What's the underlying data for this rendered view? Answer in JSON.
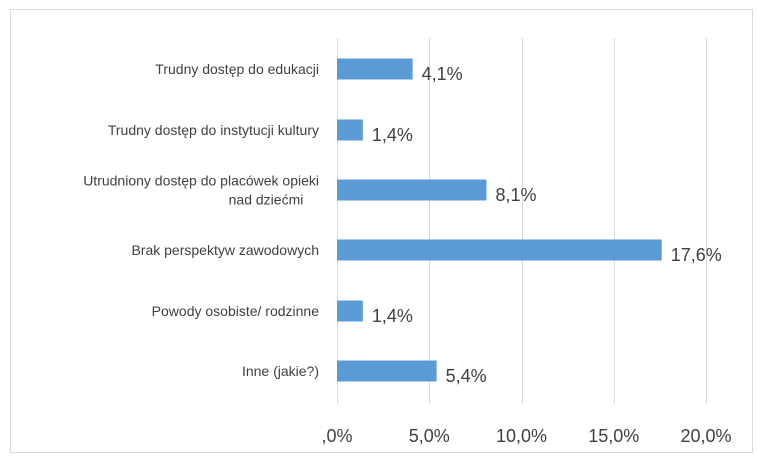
{
  "chart_data": {
    "type": "bar",
    "orientation": "horizontal",
    "categories": [
      [
        "Trudny dostęp do edukacji"
      ],
      [
        "Trudny dostęp do instytucji kultury"
      ],
      [
        "Utrudniony dostęp do placówek opieki",
        "nad dziećmi"
      ],
      [
        "Brak perspektyw zawodowych"
      ],
      [
        "Powody osobiste/ rodzinne"
      ],
      [
        "Inne (jakie?)"
      ]
    ],
    "values": [
      4.1,
      1.4,
      8.1,
      17.6,
      1.4,
      5.4
    ],
    "value_labels": [
      "4,1%",
      "1,4%",
      "8,1%",
      "17,6%",
      "1,4%",
      "5,4%"
    ],
    "xlim": [
      0,
      20
    ],
    "x_ticks": [
      0,
      5,
      10,
      15,
      20
    ],
    "x_tick_labels": [
      ",0%",
      "5,0%",
      "10,0%",
      "15,0%",
      "20,0%"
    ],
    "grid": "vertical",
    "bar_color": "#5b9bd5",
    "title": "",
    "xlabel": "",
    "ylabel": ""
  }
}
